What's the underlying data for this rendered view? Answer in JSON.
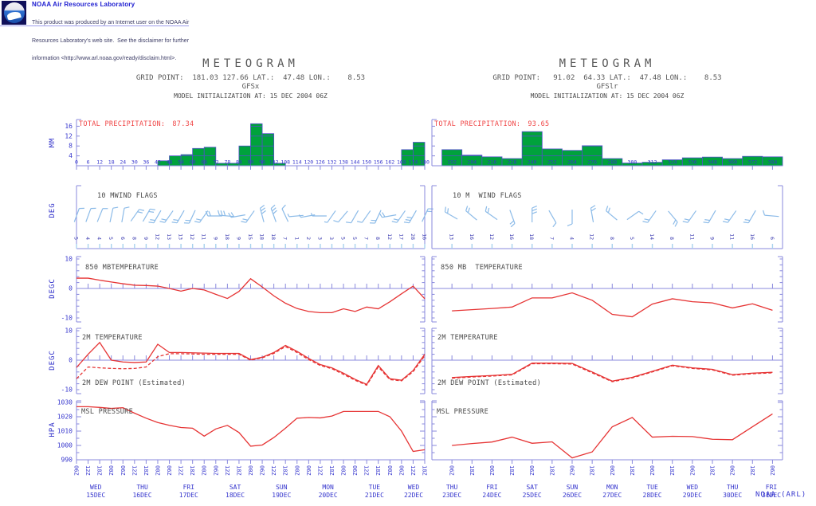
{
  "header": {
    "site_title": "NOAA Air Resources Laboratory",
    "disclaimer_lines": [
      "This product was produced by an Internet user on the NOAA Air",
      "Resources Laboratory's web site.  See the disclaimer for further",
      "information <http://www.arl.noaa.gov/ready/disclaim.html>."
    ],
    "logo": "noaa-logo"
  },
  "footer": {
    "credit": "NOAA (ARL)"
  },
  "colors": {
    "axis": "#8888dd",
    "bar_fill": "#00a23c",
    "bar_edge": "#5050c8",
    "line_red": "#e63434",
    "precip_title_red": "#f04646",
    "wind_blue": "#8cbbe8",
    "wind_tick": "#a8d2ee",
    "blue_text": "#3535cd",
    "unit_text": "#2a2ac8",
    "title_gray": "#585858",
    "header_blue": "#1b1bd0"
  },
  "chart_data": [
    {
      "type": "meteogram",
      "title": "METEOGRAM",
      "grid_point": "GRID POINT:  181.03 127.66 LAT.:  47.48 LON.:    8.53",
      "model": "GFSx",
      "init": "MODEL INITIALIZATION AT: 15 DEC 2004 06Z",
      "x_range": [
        0,
        180
      ],
      "x_hours": [
        0,
        6,
        12,
        18,
        24,
        30,
        36,
        42,
        48,
        54,
        60,
        66,
        72,
        78,
        84,
        90,
        96,
        102,
        108,
        114,
        120,
        126,
        132,
        138,
        144,
        150,
        156,
        162,
        168,
        174,
        180
      ],
      "hour_labels": [
        "06Z",
        "12Z",
        "18Z",
        "00Z",
        "06Z",
        "12Z",
        "18Z",
        "00Z",
        "06Z",
        "12Z",
        "18Z",
        "00Z",
        "06Z",
        "12Z",
        "18Z",
        "00Z",
        "06Z",
        "12Z",
        "18Z",
        "00Z",
        "06Z",
        "12Z",
        "18Z",
        "00Z",
        "06Z",
        "12Z",
        "18Z",
        "00Z",
        "06Z",
        "12Z",
        "18Z"
      ],
      "dates": [
        {
          "day": "WED",
          "date": "15DEC"
        },
        {
          "day": "THU",
          "date": "16DEC"
        },
        {
          "day": "FRI",
          "date": "17DEC"
        },
        {
          "day": "SAT",
          "date": "18DEC"
        },
        {
          "day": "SUN",
          "date": "19DEC"
        },
        {
          "day": "MON",
          "date": "20DEC"
        },
        {
          "day": "TUE",
          "date": "21DEC"
        },
        {
          "day": "WED",
          "date": "22DEC"
        }
      ],
      "panels": {
        "precip": {
          "type": "bar",
          "title": "TOTAL PRECIPITATION:",
          "total": "87.34",
          "unit": "MM",
          "yticks": [
            4,
            8,
            12,
            16
          ],
          "ymax": 18.7,
          "bars_centered": false,
          "values": [
            0,
            0,
            0,
            0,
            0,
            0,
            0,
            2,
            4,
            4.5,
            7,
            7.5,
            1,
            1,
            8,
            17,
            13,
            1,
            0,
            0,
            0,
            0,
            0,
            0,
            0,
            0,
            0,
            0,
            6.5,
            9.5
          ]
        },
        "wind": {
          "type": "wind-barbs",
          "title": "10 MWIND FLAGS",
          "unit": "DEG",
          "speeds": [
            5,
            4,
            4,
            5,
            6,
            8,
            9,
            12,
            13,
            13,
            12,
            11,
            9,
            18,
            9,
            15,
            18,
            18,
            7,
            1,
            2,
            3,
            3,
            5,
            5,
            7,
            8,
            12,
            17,
            28,
            16
          ],
          "dirs": [
            20,
            20,
            22,
            12,
            10,
            35,
            30,
            210,
            215,
            210,
            205,
            215,
            270,
            275,
            260,
            215,
            -15,
            -20,
            -25,
            265,
            260,
            270,
            215,
            220,
            210,
            215,
            205,
            260,
            215,
            210,
            25
          ]
        },
        "t850": {
          "type": "line",
          "title": "850 MBTEMPERATURE",
          "unit": "DEGC",
          "yticks": [
            10,
            0,
            -10
          ],
          "values": [
            3.5,
            3.5,
            2.8,
            2.2,
            1.6,
            1.1,
            1.0,
            0.8,
            0.0,
            -0.9,
            0.0,
            -0.5,
            -2.0,
            -3.4,
            -1.0,
            3.3,
            0.5,
            -2.5,
            -5.0,
            -6.8,
            -7.8,
            -8.2,
            -8.2,
            -6.9,
            -7.8,
            -6.3,
            -6.9,
            -4.5,
            -1.8,
            0.8,
            -3.5
          ]
        },
        "t2m": {
          "type": "line",
          "unit": "DEGC",
          "yticks": [
            10,
            0,
            -10
          ],
          "series": [
            {
              "name": "2M TEMPERATURE",
              "style": "solid",
              "values": [
                -2.5,
                2.0,
                6.0,
                0.0,
                -0.6,
                -0.8,
                -0.6,
                5.4,
                2.6,
                2.6,
                2.5,
                2.4,
                2.3,
                2.3,
                2.3,
                0.2,
                1.0,
                2.6,
                5.0,
                3.0,
                0.6,
                -1.5,
                -2.6,
                -4.4,
                -6.5,
                -8.2,
                -1.8,
                -6.3,
                -6.8,
                -3.5,
                2.0
              ]
            },
            {
              "name": "2M DEW POINT (Estimated)",
              "style": "dashed",
              "values": [
                -6.3,
                -2.3,
                -2.6,
                -2.8,
                -2.9,
                -2.8,
                -2.3,
                1.2,
                2.2,
                2.2,
                2.1,
                2.0,
                2.0,
                2.0,
                2.0,
                0.0,
                0.8,
                2.3,
                4.6,
                2.6,
                0.2,
                -1.8,
                -2.9,
                -4.8,
                -6.8,
                -8.5,
                -2.3,
                -6.6,
                -7.0,
                -3.9,
                1.5
              ]
            }
          ]
        },
        "mslp": {
          "type": "line",
          "title": "MSL PRESSURE",
          "unit": "HPA",
          "yticks": [
            1030,
            1020,
            1010,
            1000,
            990
          ],
          "values": [
            1027,
            1027,
            1026.5,
            1025.8,
            1026.3,
            1022.5,
            1019,
            1016,
            1014,
            1012.5,
            1012,
            1006.5,
            1011.5,
            1014,
            1009,
            999.5,
            1000.3,
            1005.5,
            1012,
            1019,
            1019.5,
            1019.2,
            1020.5,
            1023.7,
            1023.7,
            1023.7,
            1023.7,
            1020,
            1010,
            995.8,
            997
          ]
        }
      }
    },
    {
      "type": "meteogram",
      "title": "METEOGRAM",
      "grid_point": "GRID POINT:   91.02  64.33 LAT.:  47.48 LON.:    8.53",
      "model": "GFSlr",
      "init": "MODEL INITIALIZATION AT: 15 DEC 2004 06Z",
      "x_range": [
        180,
        390
      ],
      "x_hours": [
        192,
        204,
        216,
        228,
        240,
        252,
        264,
        276,
        288,
        300,
        312,
        324,
        336,
        348,
        360,
        372,
        384
      ],
      "hour_labels": [
        "06Z",
        "18Z",
        "06Z",
        "18Z",
        "06Z",
        "18Z",
        "06Z",
        "18Z",
        "06Z",
        "18Z",
        "06Z",
        "18Z",
        "06Z",
        "18Z",
        "06Z",
        "18Z",
        "06Z"
      ],
      "dates": [
        {
          "day": "THU",
          "date": "23DEC"
        },
        {
          "day": "FRI",
          "date": "24DEC"
        },
        {
          "day": "SAT",
          "date": "25DEC"
        },
        {
          "day": "SUN",
          "date": "26DEC"
        },
        {
          "day": "MON",
          "date": "27DEC"
        },
        {
          "day": "TUE",
          "date": "28DEC"
        },
        {
          "day": "WED",
          "date": "29DEC"
        },
        {
          "day": "THU",
          "date": "30DEC"
        },
        {
          "day": "FRI",
          "date": "31DEC"
        }
      ],
      "panels": {
        "precip": {
          "type": "bar",
          "title": "TOTAL PRECIPITATION:",
          "total": "93.65",
          "unit": "MM",
          "yticks": [
            4,
            8,
            12,
            16
          ],
          "ymax": 18.7,
          "bars_centered": true,
          "values": [
            6.5,
            4.3,
            3.6,
            2.9,
            13.8,
            6.8,
            6.2,
            8.1,
            2.9,
            1.1,
            1.4,
            2.4,
            3.2,
            3.5,
            2.9,
            3.8,
            3.6
          ]
        },
        "wind": {
          "type": "wind-barbs",
          "title": "10 M  WIND FLAGS",
          "unit": "DEG",
          "speeds": [
            13,
            16,
            12,
            16,
            18,
            7,
            4,
            12,
            8,
            5,
            14,
            8,
            11,
            9,
            11,
            16,
            6
          ],
          "dirs": [
            -60,
            -50,
            -55,
            160,
            0,
            150,
            180,
            -10,
            -50,
            55,
            215,
            140,
            215,
            210,
            215,
            210,
            -85
          ]
        },
        "t850": {
          "type": "line",
          "title": "850 MB  TEMPERATURE",
          "unit": "DEGC",
          "yticks": [
            10,
            0,
            -10
          ],
          "values": [
            -7.6,
            -7.2,
            -6.8,
            -6.3,
            -3.2,
            -3.2,
            -1.5,
            -4.0,
            -8.8,
            -9.6,
            -5.3,
            -3.5,
            -4.5,
            -4.9,
            -6.6,
            -5.2,
            -7.4
          ]
        },
        "t2m": {
          "type": "line",
          "unit": "DEGC",
          "yticks": [
            10,
            0,
            -10
          ],
          "series": [
            {
              "name": "2M TEMPERATURE",
              "style": "solid",
              "values": [
                -5.9,
                -5.5,
                -5.2,
                -4.8,
                -1.0,
                -1.0,
                -1.1,
                -4.0,
                -7.1,
                -5.8,
                -3.8,
                -1.7,
                -2.6,
                -3.1,
                -4.9,
                -4.4,
                -4.1
              ]
            },
            {
              "name": "2M DEW POINT (Estimated)",
              "style": "dashed",
              "values": [
                -6.1,
                -5.7,
                -5.4,
                -5.0,
                -1.2,
                -1.2,
                -1.3,
                -4.3,
                -7.3,
                -6.0,
                -4.0,
                -1.9,
                -2.8,
                -3.3,
                -5.1,
                -4.6,
                -4.3
              ]
            }
          ]
        },
        "mslp": {
          "type": "line",
          "title": "MSL PRESSURE",
          "unit": "HPA",
          "yticks": [
            1030,
            1020,
            1010,
            1000,
            990
          ],
          "values": [
            1000,
            1001.3,
            1002.4,
            1005.8,
            1001.5,
            1002.5,
            991.3,
            995.5,
            1013,
            1019.5,
            1005.8,
            1006.4,
            1006.2,
            1004.3,
            1004,
            1013,
            1022
          ]
        }
      }
    }
  ]
}
